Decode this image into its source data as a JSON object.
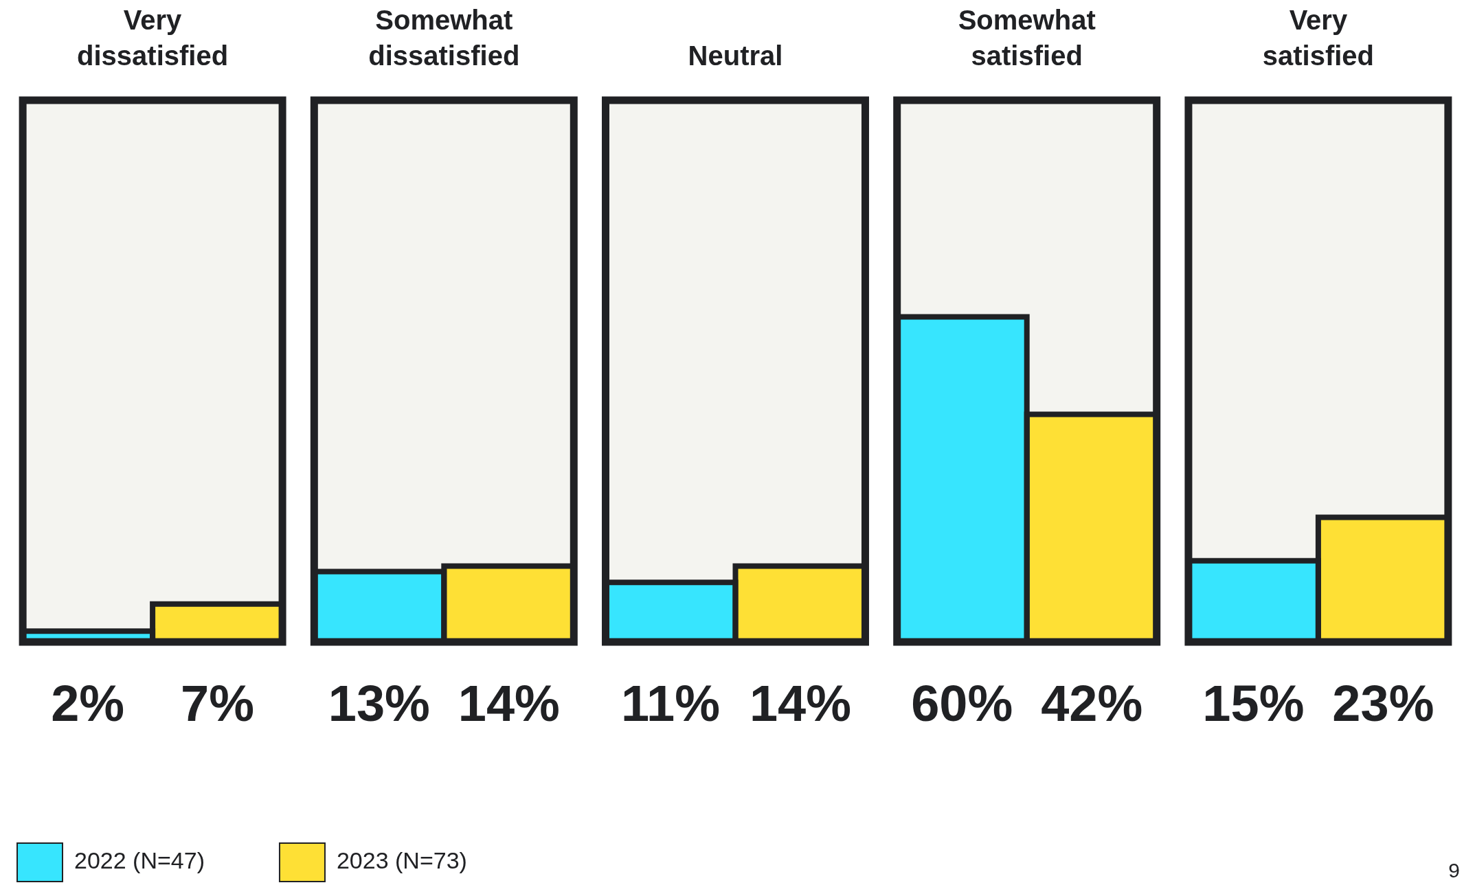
{
  "chart_data": {
    "type": "bar",
    "categories": [
      "Very dissatisfied",
      "Somewhat dissatisfied",
      "Neutral",
      "Somewhat satisfied",
      "Very satisfied"
    ],
    "series": [
      {
        "color": "#f4f4f0",
        "values": [
          100,
          100,
          100,
          100,
          100
        ]
      },
      {
        "name": "2022 (N=47)",
        "color": "#37e5fe",
        "values": [
          2,
          13,
          11,
          60,
          15
        ],
        "value_labels": [
          "2%",
          "13%",
          "11%",
          "60%",
          "15%"
        ]
      },
      {
        "name": "2023 (N=73)",
        "color": "#fee035",
        "values": [
          7,
          14,
          14,
          42,
          23
        ],
        "value_labels": [
          "7%",
          "14%",
          "14%",
          "42%",
          "23%"
        ]
      }
    ],
    "ylim": [
      0,
      100
    ],
    "tick_labels": "x",
    "legend": "bottom left",
    "annotations": [
      "9"
    ]
  }
}
